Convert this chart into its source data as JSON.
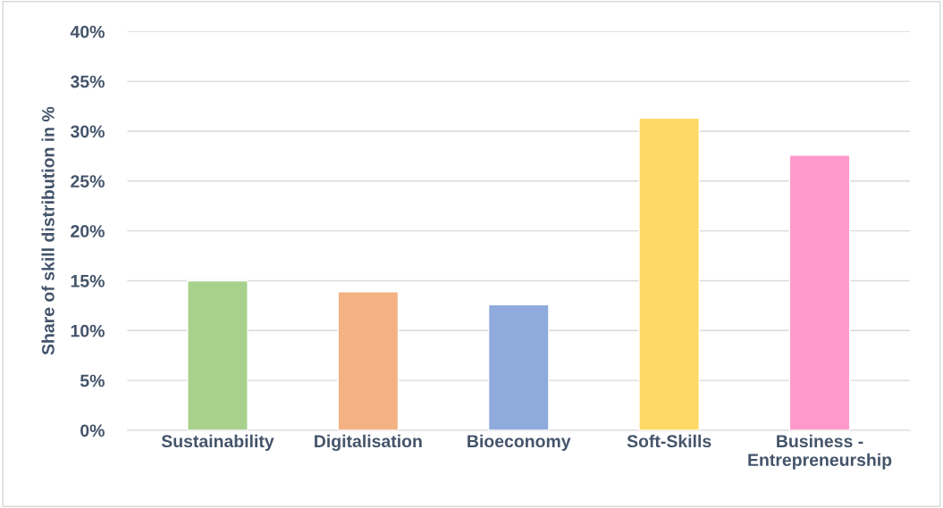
{
  "chart_data": {
    "type": "bar",
    "ylabel": "Share of skill distribution in %",
    "categories": [
      "Sustainability",
      "Digitalisation",
      "Bioeconomy",
      "Soft-Skills",
      "Business -\nEntrepreneurship"
    ],
    "values": [
      15.0,
      13.9,
      12.6,
      31.3,
      27.6
    ],
    "colors": [
      "#a9d18e",
      "#f4b183",
      "#8faadc",
      "#ffd966",
      "#ff99cc"
    ],
    "ylim": [
      0,
      40
    ],
    "yticks": [
      {
        "value": 0,
        "label": "0%"
      },
      {
        "value": 5,
        "label": "5%"
      },
      {
        "value": 10,
        "label": "10%"
      },
      {
        "value": 15,
        "label": "15%"
      },
      {
        "value": 20,
        "label": "20%"
      },
      {
        "value": 25,
        "label": "25%"
      },
      {
        "value": 30,
        "label": "30%"
      },
      {
        "value": 35,
        "label": "35%"
      },
      {
        "value": 40,
        "label": "40%"
      }
    ],
    "grid": "y",
    "legend": false
  }
}
